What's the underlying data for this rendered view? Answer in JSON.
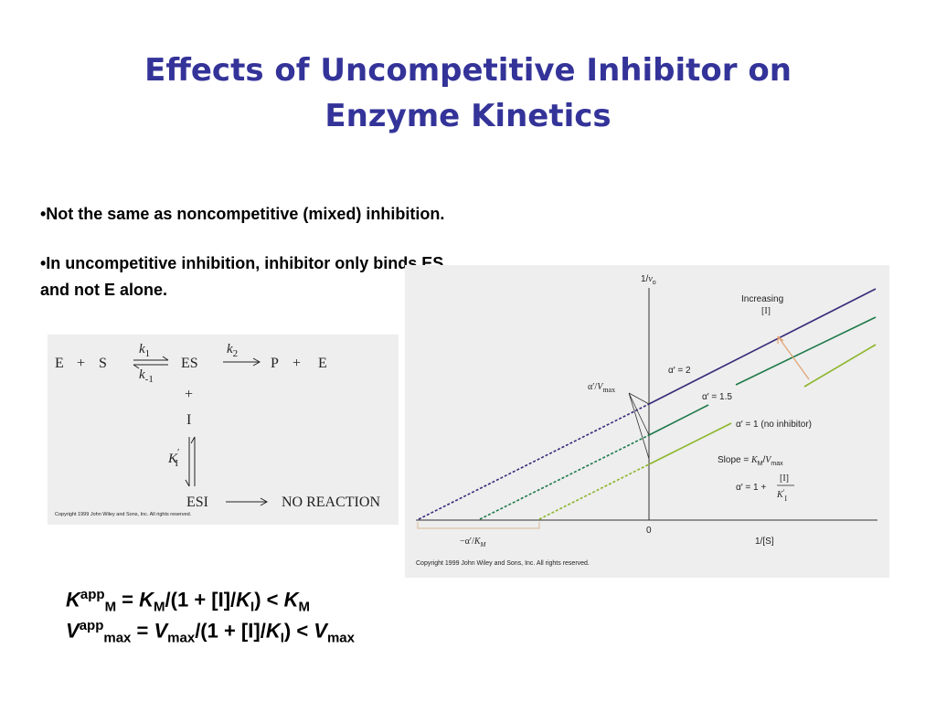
{
  "title": "Effects of Uncompetitive Inhibitor on Enzyme Kinetics",
  "bullets": [
    "•Not the same as noncompetitive (mixed) inhibition.",
    "•In uncompetitive inhibition, inhibitor only binds ES and not E alone."
  ],
  "scheme": {
    "row": [
      "E",
      "+",
      "S",
      "ES",
      "P",
      "+",
      "E"
    ],
    "k1": [
      "k",
      "1"
    ],
    "k_1": [
      "k",
      "-1"
    ],
    "k2": [
      "k",
      "2"
    ],
    "plus": "+",
    "inhibitor": "I",
    "ki": [
      "K",
      "′",
      "I"
    ],
    "esi": "ESI",
    "no_reaction": "NO REACTION",
    "copyright": "Copyright 1999 John Wiley and Sons, Inc. All rights reserved."
  },
  "graph": {
    "y_label": [
      "1/",
      "v",
      "o"
    ],
    "increasing": [
      "Increasing",
      "[I]"
    ],
    "alpha_2": "α′ = 2",
    "alpha_1_5": "α′ = 1.5",
    "alpha_1": "α′ = 1 (no inhibitor)",
    "intercept": [
      "α′/",
      "V",
      "max"
    ],
    "slope": [
      "Slope = ",
      "K",
      "M",
      "/",
      "V",
      "max"
    ],
    "alpha_def": [
      "α′ = 1 + ",
      "[I]",
      "K",
      "′",
      "I"
    ],
    "origin": "0",
    "x_label": "1/[S]",
    "x_intercept": [
      "−α′/",
      "K",
      "M"
    ],
    "copyright": "Copyright 1999 John Wiley and Sons, Inc. All rights reserved."
  },
  "equations": [
    [
      "K",
      "app",
      "M",
      " = ",
      "K",
      "M",
      "/(1 + [I]/",
      "K",
      "I",
      ") < ",
      "K",
      "M"
    ],
    [
      "V",
      "app",
      "max",
      " = ",
      "V",
      "max",
      "/(1 + [I]/",
      "K",
      "I",
      ") < ",
      "V",
      "max"
    ]
  ]
}
